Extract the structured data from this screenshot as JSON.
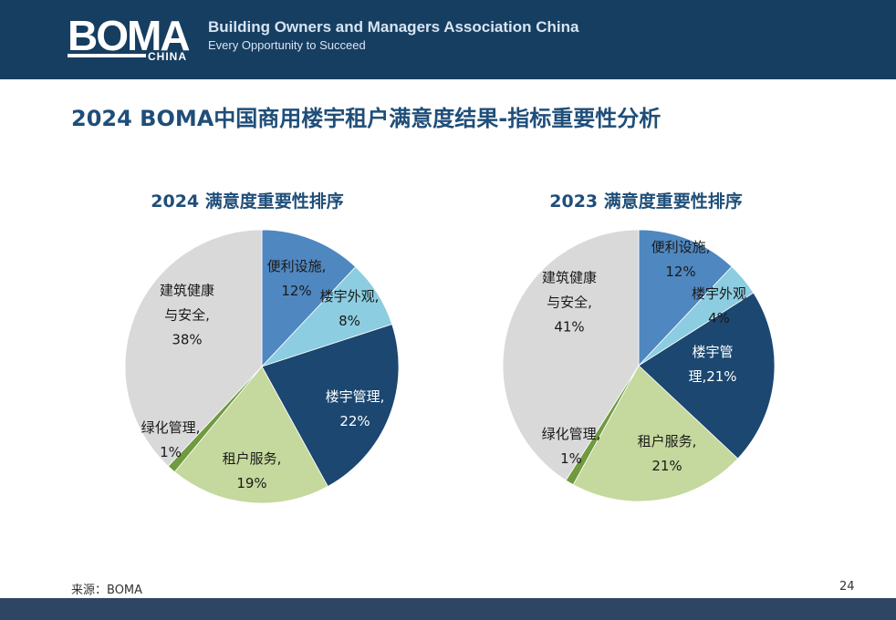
{
  "header": {
    "logo_main": "BOMA",
    "logo_sub": "CHINA",
    "org_name": "Building Owners and Managers Association China",
    "tagline": "Every Opportunity to Succeed"
  },
  "page_title": "2024 BOMA中国商用楼宇租户满意度结果-指标重要性分析",
  "footer": {
    "source": "来源：BOMA",
    "page_number": "24"
  },
  "colors": {
    "header_bg": "#163e61",
    "title": "#1f4e79",
    "footer_bg": "#2e4663"
  },
  "chart_data": [
    {
      "type": "pie",
      "title": "2024 满意度重要性排序",
      "slices": [
        {
          "label_lines": [
            "便利设施,",
            "12%"
          ],
          "value": 12,
          "color": "#4f87c0",
          "label_color": "#1a1a1a"
        },
        {
          "label_lines": [
            "楼宇外观,",
            "8%"
          ],
          "value": 8,
          "color": "#8ccde1",
          "label_color": "#1a1a1a"
        },
        {
          "label_lines": [
            "楼宇管理,",
            "22%"
          ],
          "value": 22,
          "color": "#1b4770",
          "label_color": "#ffffff"
        },
        {
          "label_lines": [
            "租户服务,",
            "19%"
          ],
          "value": 19,
          "color": "#c5d89d",
          "label_color": "#1a1a1a"
        },
        {
          "label_lines": [
            "绿化管理,",
            "1%"
          ],
          "value": 1,
          "color": "#6f9a3e",
          "label_color": "#1a1a1a"
        },
        {
          "label_lines": [
            "建筑健康",
            "与安全,",
            "38%"
          ],
          "value": 38,
          "color": "#d9d9d9",
          "label_color": "#1a1a1a"
        }
      ]
    },
    {
      "type": "pie",
      "title": "2023 满意度重要性排序",
      "slices": [
        {
          "label_lines": [
            "便利设施,",
            "12%"
          ],
          "value": 12,
          "color": "#4f87c0",
          "label_color": "#1a1a1a"
        },
        {
          "label_lines": [
            "楼宇外观",
            "4%"
          ],
          "value": 4,
          "color": "#8ccde1",
          "label_color": "#1a1a1a"
        },
        {
          "label_lines": [
            "楼宇管",
            "理,21%"
          ],
          "value": 21,
          "color": "#1b4770",
          "label_color": "#ffffff"
        },
        {
          "label_lines": [
            "租户服务,",
            "21%"
          ],
          "value": 21,
          "color": "#c5d89d",
          "label_color": "#1a1a1a"
        },
        {
          "label_lines": [
            "绿化管理,",
            "1%"
          ],
          "value": 1,
          "color": "#6f9a3e",
          "label_color": "#1a1a1a"
        },
        {
          "label_lines": [
            "建筑健康",
            "与安全,",
            "41%"
          ],
          "value": 41,
          "color": "#d9d9d9",
          "label_color": "#1a1a1a"
        }
      ]
    }
  ]
}
